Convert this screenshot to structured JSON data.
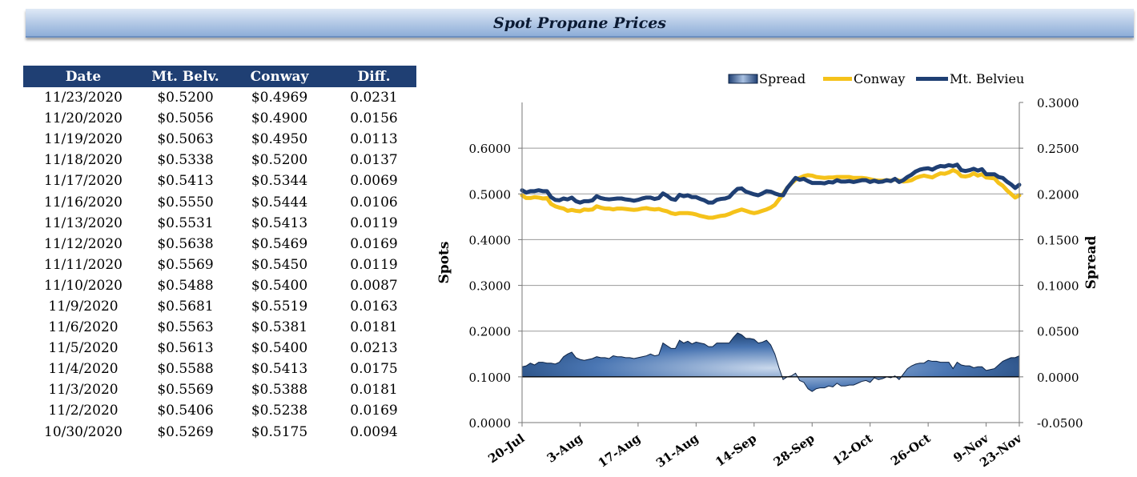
{
  "title": "Spot Propane Prices",
  "table": {
    "headers": [
      "Date",
      "Mt. Belv.",
      "Conway",
      "Diff."
    ],
    "rows": [
      [
        "11/23/2020",
        "$0.5200",
        "$0.4969",
        "0.0231"
      ],
      [
        "11/20/2020",
        "$0.5056",
        "$0.4900",
        "0.0156"
      ],
      [
        "11/19/2020",
        "$0.5063",
        "$0.4950",
        "0.0113"
      ],
      [
        "11/18/2020",
        "$0.5338",
        "$0.5200",
        "0.0137"
      ],
      [
        "11/17/2020",
        "$0.5413",
        "$0.5344",
        "0.0069"
      ],
      [
        "11/16/2020",
        "$0.5550",
        "$0.5444",
        "0.0106"
      ],
      [
        "11/13/2020",
        "$0.5531",
        "$0.5413",
        "0.0119"
      ],
      [
        "11/12/2020",
        "$0.5638",
        "$0.5469",
        "0.0169"
      ],
      [
        "11/11/2020",
        "$0.5569",
        "$0.5450",
        "0.0119"
      ],
      [
        "11/10/2020",
        "$0.5488",
        "$0.5400",
        "0.0087"
      ],
      [
        "11/9/2020",
        "$0.5681",
        "$0.5519",
        "0.0163"
      ],
      [
        "11/6/2020",
        "$0.5563",
        "$0.5381",
        "0.0181"
      ],
      [
        "11/5/2020",
        "$0.5613",
        "$0.5400",
        "0.0213"
      ],
      [
        "11/4/2020",
        "$0.5588",
        "$0.5413",
        "0.0175"
      ],
      [
        "11/3/2020",
        "$0.5569",
        "$0.5388",
        "0.0181"
      ],
      [
        "11/2/2020",
        "$0.5406",
        "$0.5238",
        "0.0169"
      ],
      [
        "10/30/2020",
        "$0.5269",
        "$0.5175",
        "0.0094"
      ]
    ]
  },
  "chart_data": {
    "type": "line",
    "title": "",
    "xlabel": "",
    "ylabel": "Spots",
    "y2label": "Spread",
    "ylim": [
      0,
      0.7
    ],
    "y2lim": [
      -0.05,
      0.3
    ],
    "yticks": [
      "0.0000",
      "0.1000",
      "0.2000",
      "0.3000",
      "0.4000",
      "0.5000",
      "0.6000"
    ],
    "y2ticks": [
      "-0.0500",
      "0.0000",
      "0.0500",
      "0.1000",
      "0.1500",
      "0.2000",
      "0.2500",
      "0.3000"
    ],
    "xticks": [
      "20-Jul",
      "3-Aug",
      "17-Aug",
      "31-Aug",
      "14-Sep",
      "28-Sep",
      "12-Oct",
      "26-Oct",
      "9-Nov",
      "23-Nov"
    ],
    "x_start_date": "2020-07-20",
    "grid": true,
    "legend_position": "top-right",
    "series": [
      {
        "name": "Spread",
        "axis": "right",
        "style": "area",
        "color": "#1f4f8a",
        "values": [
          0.011,
          0.012,
          0.015,
          0.013,
          0.016,
          0.016,
          0.015,
          0.015,
          0.014,
          0.016,
          0.022,
          0.025,
          0.027,
          0.021,
          0.019,
          0.018,
          0.019,
          0.02,
          0.022,
          0.021,
          0.021,
          0.02,
          0.023,
          0.022,
          0.022,
          0.021,
          0.021,
          0.02,
          0.021,
          0.022,
          0.023,
          0.025,
          0.023,
          0.024,
          0.037,
          0.034,
          0.031,
          0.031,
          0.04,
          0.037,
          0.039,
          0.036,
          0.038,
          0.037,
          0.036,
          0.033,
          0.033,
          0.037,
          0.037,
          0.037,
          0.037,
          0.043,
          0.048,
          0.046,
          0.042,
          0.042,
          0.041,
          0.037,
          0.038,
          0.04,
          0.035,
          0.025,
          0.01,
          -0.003,
          0.0,
          0.001,
          0.004,
          -0.004,
          -0.006,
          -0.013,
          -0.016,
          -0.013,
          -0.012,
          -0.012,
          -0.01,
          -0.011,
          -0.007,
          -0.01,
          -0.01,
          -0.009,
          -0.009,
          -0.007,
          -0.005,
          -0.004,
          -0.006,
          -0.001,
          -0.003,
          -0.002,
          0.0,
          -0.001,
          0.001,
          -0.003,
          0.003,
          0.009,
          0.012,
          0.014,
          0.015,
          0.015,
          0.018,
          0.017,
          0.017,
          0.016,
          0.016,
          0.016,
          0.009,
          0.016,
          0.013,
          0.012,
          0.012,
          0.01,
          0.011,
          0.011,
          0.007,
          0.008,
          0.009,
          0.013,
          0.017,
          0.019,
          0.021,
          0.021,
          0.023
        ]
      },
      {
        "name": "Conway",
        "axis": "left",
        "style": "line",
        "color": "#f5c21a",
        "values": [
          0.497,
          0.491,
          0.491,
          0.493,
          0.492,
          0.49,
          0.491,
          0.478,
          0.473,
          0.47,
          0.468,
          0.463,
          0.465,
          0.463,
          0.462,
          0.466,
          0.465,
          0.466,
          0.473,
          0.47,
          0.468,
          0.468,
          0.466,
          0.468,
          0.468,
          0.467,
          0.466,
          0.465,
          0.466,
          0.468,
          0.469,
          0.467,
          0.466,
          0.467,
          0.464,
          0.462,
          0.458,
          0.456,
          0.458,
          0.458,
          0.458,
          0.457,
          0.455,
          0.452,
          0.45,
          0.448,
          0.448,
          0.45,
          0.452,
          0.453,
          0.456,
          0.46,
          0.463,
          0.466,
          0.463,
          0.46,
          0.458,
          0.46,
          0.463,
          0.466,
          0.47,
          0.476,
          0.488,
          0.5,
          0.513,
          0.523,
          0.531,
          0.535,
          0.539,
          0.541,
          0.54,
          0.537,
          0.536,
          0.535,
          0.536,
          0.536,
          0.537,
          0.537,
          0.537,
          0.537,
          0.535,
          0.535,
          0.535,
          0.534,
          0.532,
          0.53,
          0.529,
          0.529,
          0.53,
          0.529,
          0.532,
          0.529,
          0.527,
          0.528,
          0.53,
          0.535,
          0.538,
          0.54,
          0.538,
          0.536,
          0.541,
          0.545,
          0.544,
          0.547,
          0.552,
          0.548,
          0.539,
          0.538,
          0.54,
          0.545,
          0.54,
          0.543,
          0.536,
          0.535,
          0.534,
          0.524,
          0.518,
          0.508,
          0.5,
          0.492,
          0.497
        ]
      },
      {
        "name": "Mt. Belvieu",
        "axis": "left",
        "style": "line",
        "color": "#1f3f73",
        "values": [
          0.508,
          0.503,
          0.506,
          0.506,
          0.508,
          0.506,
          0.506,
          0.493,
          0.487,
          0.486,
          0.49,
          0.488,
          0.492,
          0.484,
          0.481,
          0.484,
          0.484,
          0.486,
          0.495,
          0.491,
          0.489,
          0.488,
          0.489,
          0.49,
          0.49,
          0.488,
          0.487,
          0.485,
          0.487,
          0.49,
          0.492,
          0.492,
          0.489,
          0.491,
          0.501,
          0.496,
          0.489,
          0.487,
          0.498,
          0.495,
          0.497,
          0.493,
          0.493,
          0.489,
          0.486,
          0.481,
          0.481,
          0.487,
          0.489,
          0.49,
          0.493,
          0.503,
          0.511,
          0.512,
          0.505,
          0.502,
          0.499,
          0.497,
          0.501,
          0.506,
          0.505,
          0.501,
          0.498,
          0.497,
          0.513,
          0.524,
          0.535,
          0.531,
          0.533,
          0.528,
          0.524,
          0.524,
          0.524,
          0.523,
          0.526,
          0.525,
          0.53,
          0.527,
          0.527,
          0.528,
          0.526,
          0.528,
          0.53,
          0.53,
          0.526,
          0.529,
          0.526,
          0.527,
          0.53,
          0.528,
          0.533,
          0.526,
          0.53,
          0.537,
          0.542,
          0.549,
          0.553,
          0.555,
          0.556,
          0.553,
          0.558,
          0.561,
          0.56,
          0.563,
          0.561,
          0.564,
          0.552,
          0.55,
          0.552,
          0.555,
          0.551,
          0.554,
          0.543,
          0.543,
          0.543,
          0.537,
          0.535,
          0.527,
          0.521,
          0.513,
          0.52
        ]
      }
    ]
  }
}
